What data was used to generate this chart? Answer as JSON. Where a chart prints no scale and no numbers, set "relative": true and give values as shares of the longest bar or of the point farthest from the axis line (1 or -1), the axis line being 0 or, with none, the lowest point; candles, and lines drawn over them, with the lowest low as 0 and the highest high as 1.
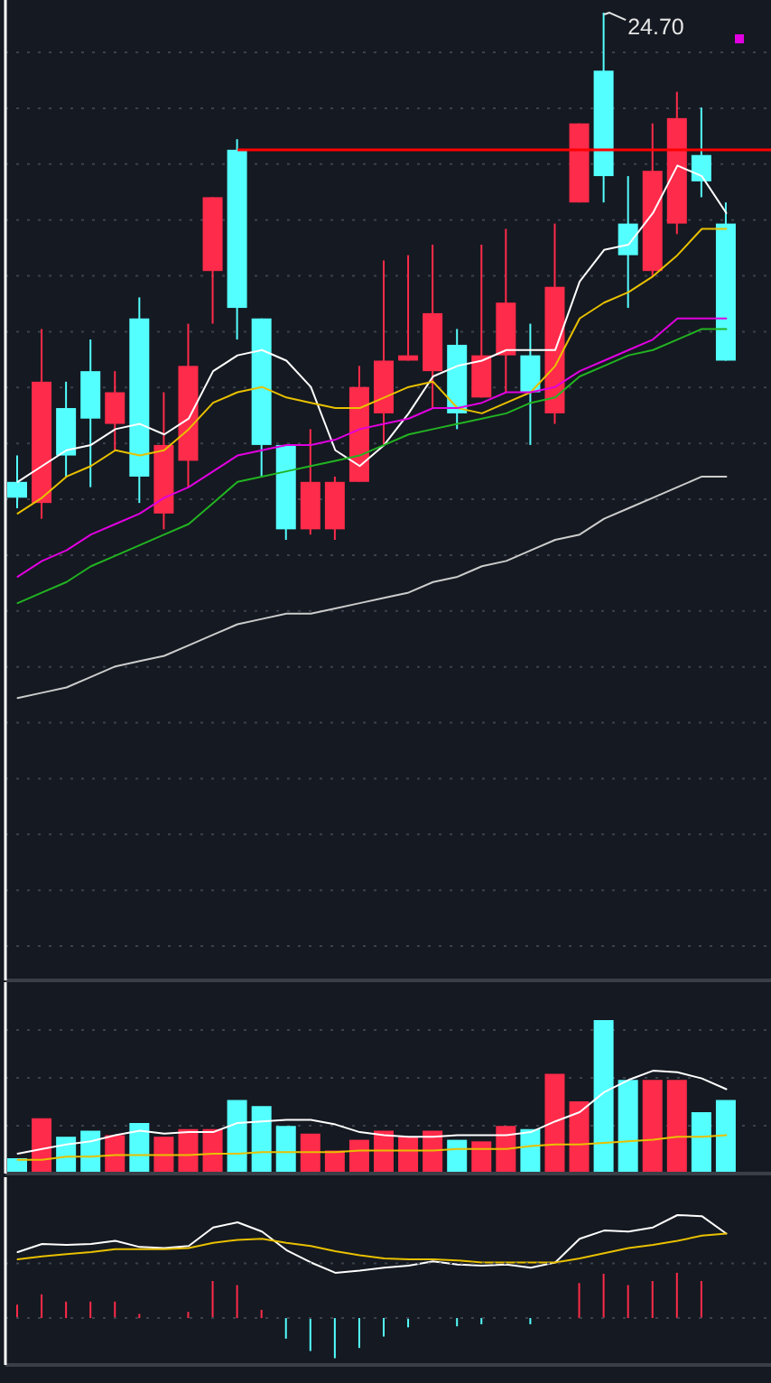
{
  "chart_data": [
    {
      "type": "candlestick",
      "relative": true,
      "grid": true,
      "categories": [
        null,
        null,
        null,
        null,
        null,
        null,
        null,
        null,
        null,
        null,
        null,
        null,
        null,
        null,
        null,
        null,
        null,
        null,
        null,
        null,
        null,
        null,
        null,
        null,
        null,
        null,
        null,
        null,
        null,
        null
      ],
      "ohlc": [
        [
          0.11,
          0.16,
          0.06,
          0.08
        ],
        [
          0.07,
          0.4,
          0.04,
          0.3
        ],
        [
          0.25,
          0.3,
          0.12,
          0.16
        ],
        [
          0.32,
          0.38,
          0.1,
          0.23
        ],
        [
          0.22,
          0.32,
          0.17,
          0.28
        ],
        [
          0.42,
          0.46,
          0.07,
          0.12
        ],
        [
          0.05,
          0.28,
          0.02,
          0.18
        ],
        [
          0.15,
          0.41,
          0.1,
          0.33
        ],
        [
          0.51,
          0.65,
          0.41,
          0.65
        ],
        [
          0.74,
          0.76,
          0.38,
          0.44
        ],
        [
          0.42,
          0.42,
          0.12,
          0.18
        ],
        [
          0.18,
          0.18,
          0,
          0.02
        ],
        [
          0.02,
          0.21,
          0.01,
          0.11
        ],
        [
          0.02,
          0.12,
          0,
          0.11
        ],
        [
          0.11,
          0.33,
          0.11,
          0.29
        ],
        [
          0.24,
          0.53,
          0.18,
          0.34
        ],
        [
          0.34,
          0.54,
          0.34,
          0.35
        ],
        [
          0.32,
          0.56,
          0.25,
          0.43
        ],
        [
          0.37,
          0.4,
          0.21,
          0.24
        ],
        [
          0.27,
          0.56,
          0.27,
          0.35
        ],
        [
          0.35,
          0.59,
          0.28,
          0.45
        ],
        [
          0.35,
          0.41,
          0.18,
          0.28
        ],
        [
          0.24,
          0.6,
          0.22,
          0.48
        ],
        [
          0.64,
          0.79,
          0.64,
          0.79
        ],
        [
          0.89,
          1,
          0.64,
          0.69
        ],
        [
          0.6,
          0.69,
          0.44,
          0.54
        ],
        [
          0.51,
          0.79,
          0.5,
          0.7
        ],
        [
          0.6,
          0.85,
          0.58,
          0.8
        ],
        [
          0.73,
          0.82,
          0.65,
          0.68
        ],
        [
          0.6,
          0.64,
          0.34,
          0.34
        ]
      ],
      "colors": [
        "#54ffff",
        "#ff2b4a",
        "#54ffff",
        "#54ffff",
        "#ff2b4a",
        "#54ffff",
        "#ff2b4a",
        "#ff2b4a",
        "#ff2b4a",
        "#54ffff",
        "#54ffff",
        "#54ffff",
        "#ff2b4a",
        "#ff2b4a",
        "#ff2b4a",
        "#ff2b4a",
        "#ff2b4a",
        "#ff2b4a",
        "#54ffff",
        "#ff2b4a",
        "#ff2b4a",
        "#54ffff",
        "#ff2b4a",
        "#ff2b4a",
        "#54ffff",
        "#54ffff",
        "#ff2b4a",
        "#ff2b4a",
        "#54ffff",
        "#54ffff"
      ],
      "series": [
        {
          "type": "line",
          "color": "#ffffff",
          "values": [
            0.11,
            0.14,
            0.17,
            0.18,
            0.21,
            0.22,
            0.2,
            0.23,
            0.32,
            0.35,
            0.36,
            0.34,
            0.29,
            0.17,
            0.14,
            0.18,
            0.24,
            0.31,
            0.33,
            0.34,
            0.36,
            0.36,
            0.36,
            0.49,
            0.55,
            0.56,
            0.62,
            0.71,
            0.69,
            0.62
          ]
        },
        {
          "type": "line",
          "color": "#e8c000",
          "values": [
            0.05,
            0.08,
            0.12,
            0.14,
            0.17,
            0.16,
            0.17,
            0.21,
            0.26,
            0.28,
            0.29,
            0.27,
            0.26,
            0.25,
            0.25,
            0.27,
            0.29,
            0.3,
            0.25,
            0.24,
            0.26,
            0.28,
            0.33,
            0.42,
            0.45,
            0.47,
            0.5,
            0.54,
            0.59,
            0.59
          ]
        },
        {
          "type": "line",
          "color": "#e000e0",
          "values": [
            -0.07,
            -0.04,
            -0.02,
            0.01,
            0.03,
            0.05,
            0.08,
            0.1,
            0.13,
            0.16,
            0.17,
            0.18,
            0.18,
            0.19,
            0.21,
            0.22,
            0.23,
            0.25,
            0.25,
            0.26,
            0.28,
            0.28,
            0.29,
            0.32,
            0.34,
            0.36,
            0.38,
            0.42,
            0.42,
            0.42
          ]
        },
        {
          "type": "line",
          "color": "#22b422",
          "values": [
            -0.12,
            -0.1,
            -0.08,
            -0.05,
            -0.03,
            -0.01,
            0.01,
            0.03,
            0.07,
            0.11,
            0.12,
            0.13,
            0.14,
            0.15,
            0.16,
            0.18,
            0.2,
            0.21,
            0.22,
            0.23,
            0.24,
            0.26,
            0.27,
            0.31,
            0.33,
            0.35,
            0.36,
            0.38,
            0.4,
            0.4
          ]
        },
        {
          "type": "line",
          "color": "#cccccc",
          "values": [
            -0.3,
            -0.29,
            -0.28,
            -0.26,
            -0.24,
            -0.23,
            -0.22,
            -0.2,
            -0.18,
            -0.16,
            -0.15,
            -0.14,
            -0.14,
            -0.13,
            -0.12,
            -0.11,
            -0.1,
            -0.08,
            -0.07,
            -0.05,
            -0.04,
            -0.02,
            0.0,
            0.01,
            0.04,
            0.06,
            0.08,
            0.1,
            0.12,
            0.12
          ]
        }
      ],
      "ref_lines": [
        {
          "axis": "y",
          "value": 0.74,
          "color": "#ff0000"
        }
      ],
      "annotations": [
        "24.70"
      ]
    },
    {
      "type": "bar",
      "relative": true,
      "grid": true,
      "categories": [
        null,
        null,
        null,
        null,
        null,
        null,
        null,
        null,
        null,
        null,
        null,
        null,
        null,
        null,
        null,
        null,
        null,
        null,
        null,
        null,
        null,
        null,
        null,
        null,
        null,
        null,
        null,
        null,
        null,
        null
      ],
      "series": [
        {
          "type": "bar",
          "colors": [
            "#54ffff",
            "#ff2b4a",
            "#54ffff",
            "#54ffff",
            "#ff2b4a",
            "#54ffff",
            "#ff2b4a",
            "#ff2b4a",
            "#ff2b4a",
            "#54ffff",
            "#54ffff",
            "#54ffff",
            "#ff2b4a",
            "#ff2b4a",
            "#ff2b4a",
            "#ff2b4a",
            "#ff2b4a",
            "#ff2b4a",
            "#54ffff",
            "#ff2b4a",
            "#ff2b4a",
            "#54ffff",
            "#ff2b4a",
            "#ff2b4a",
            "#54ffff",
            "#54ffff",
            "#ff2b4a",
            "#ff2b4a",
            "#54ffff",
            "#54ffff"
          ],
          "values": [
            0.1,
            0.36,
            0.24,
            0.28,
            0.25,
            0.33,
            0.24,
            0.29,
            0.29,
            0.48,
            0.44,
            0.31,
            0.26,
            0.15,
            0.22,
            0.28,
            0.24,
            0.28,
            0.22,
            0.21,
            0.31,
            0.29,
            0.65,
            0.47,
            1,
            0.61,
            0.61,
            0.61,
            0.4,
            0.48
          ]
        },
        {
          "type": "line",
          "color": "#ffffff",
          "values": [
            0.13,
            0.16,
            0.19,
            0.21,
            0.25,
            0.28,
            0.26,
            0.27,
            0.27,
            0.33,
            0.34,
            0.35,
            0.35,
            0.32,
            0.27,
            0.25,
            0.24,
            0.24,
            0.25,
            0.25,
            0.25,
            0.27,
            0.34,
            0.4,
            0.53,
            0.61,
            0.67,
            0.66,
            0.62,
            0.55
          ]
        },
        {
          "type": "line",
          "color": "#e8c000",
          "values": [
            0.09,
            0.09,
            0.11,
            0.11,
            0.12,
            0.12,
            0.12,
            0.12,
            0.13,
            0.13,
            0.14,
            0.14,
            0.14,
            0.14,
            0.15,
            0.15,
            0.15,
            0.15,
            0.16,
            0.16,
            0.16,
            0.18,
            0.19,
            0.19,
            0.2,
            0.21,
            0.22,
            0.24,
            0.24,
            0.25
          ]
        }
      ]
    },
    {
      "type": "bar",
      "relative": true,
      "categories": [
        null,
        null,
        null,
        null,
        null,
        null,
        null,
        null,
        null,
        null,
        null,
        null,
        null,
        null,
        null,
        null,
        null,
        null,
        null,
        null,
        null,
        null,
        null,
        null,
        null,
        null,
        null,
        null,
        null,
        null
      ],
      "series": [
        {
          "type": "bar",
          "colors": [
            "#ff2b4a",
            "#ff2b4a",
            "#ff2b4a",
            "#ff2b4a",
            "#ff2b4a",
            "#ff2b4a",
            null,
            "#ff2b4a",
            "#ff2b4a",
            "#ff2b4a",
            "#ff2b4a",
            "#54ffff",
            "#54ffff",
            "#54ffff",
            "#54ffff",
            "#54ffff",
            "#54ffff",
            null,
            "#54ffff",
            "#54ffff",
            null,
            "#54ffff",
            null,
            "#ff2b4a",
            "#ff2b4a",
            "#ff2b4a",
            "#ff2b4a",
            "#ff2b4a",
            "#ff2b4a",
            null
          ],
          "values": [
            0.13,
            0.23,
            0.16,
            0.16,
            0.16,
            0.04,
            null,
            0.06,
            0.36,
            0.32,
            0.08,
            -0.2,
            -0.32,
            -0.39,
            -0.29,
            -0.18,
            -0.09,
            null,
            -0.08,
            -0.06,
            null,
            -0.06,
            null,
            0.34,
            0.43,
            0.32,
            0.36,
            0.44,
            0.36,
            null
          ]
        },
        {
          "type": "line",
          "color": "#ffffff",
          "values": [
            0.64,
            0.72,
            0.71,
            0.72,
            0.75,
            0.69,
            0.68,
            0.7,
            0.88,
            0.93,
            0.84,
            0.66,
            0.54,
            0.44,
            0.46,
            0.49,
            0.51,
            0.55,
            0.52,
            0.51,
            0.52,
            0.49,
            0.54,
            0.77,
            0.85,
            0.84,
            0.88,
            1,
            0.99,
            0.82
          ]
        },
        {
          "type": "line",
          "color": "#e8c000",
          "values": [
            0.57,
            0.6,
            0.62,
            0.64,
            0.67,
            0.67,
            0.67,
            0.68,
            0.73,
            0.76,
            0.77,
            0.73,
            0.7,
            0.65,
            0.61,
            0.58,
            0.57,
            0.57,
            0.56,
            0.54,
            0.54,
            0.54,
            0.54,
            0.58,
            0.63,
            0.68,
            0.71,
            0.75,
            0.8,
            0.82
          ]
        }
      ],
      "ref_lines": [
        {
          "axis": "y",
          "value": 0.53,
          "color": "#3c424d",
          "line_style": "dotted"
        },
        {
          "axis": "y",
          "value": 0,
          "color": "#3c424d",
          "line_style": "dotted"
        }
      ]
    }
  ]
}
